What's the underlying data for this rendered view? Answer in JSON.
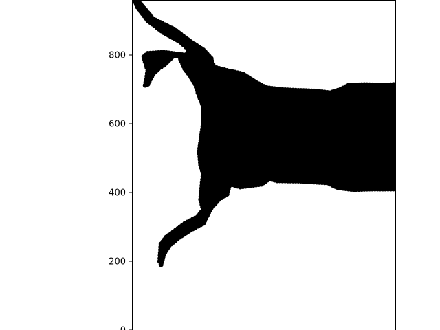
{
  "chart_data": {
    "type": "scatter",
    "title": "",
    "xlabel": "",
    "ylabel": "",
    "xlim": [
      0,
      1
    ],
    "ylim": [
      0,
      960
    ],
    "y_ticks": [
      0,
      200,
      400,
      600,
      800
    ],
    "y_tick_labels": [
      "0",
      "200",
      "400",
      "600",
      "800"
    ],
    "x_ticks": [],
    "grid": false,
    "legend": "none",
    "marker_color": "#000000",
    "axes_color": "#000000",
    "background": "#ffffff",
    "series": [
      {
        "shape": "silhouette of a leaping animal drawn as densely overlapping black dots",
        "outline": [
          [
            0.02,
            960
          ],
          [
            0.08,
            905
          ],
          [
            0.16,
            875
          ],
          [
            0.22,
            840
          ],
          [
            0.27,
            815
          ],
          [
            0.3,
            790
          ],
          [
            0.31,
            765
          ],
          [
            0.36,
            755
          ],
          [
            0.42,
            745
          ],
          [
            0.47,
            720
          ],
          [
            0.51,
            705
          ],
          [
            0.56,
            700
          ],
          [
            0.6,
            698
          ],
          [
            0.7,
            695
          ],
          [
            0.75,
            690
          ],
          [
            0.79,
            700
          ],
          [
            0.82,
            712
          ],
          [
            0.88,
            714
          ],
          [
            0.96,
            712
          ],
          [
            1.0,
            715
          ],
          [
            1.0,
            410
          ],
          [
            0.9,
            410
          ],
          [
            0.84,
            408
          ],
          [
            0.78,
            414
          ],
          [
            0.74,
            428
          ],
          [
            0.64,
            433
          ],
          [
            0.55,
            434
          ],
          [
            0.52,
            440
          ],
          [
            0.49,
            424
          ],
          [
            0.45,
            420
          ],
          [
            0.41,
            416
          ],
          [
            0.37,
            425
          ],
          [
            0.36,
            395
          ],
          [
            0.33,
            380
          ],
          [
            0.3,
            355
          ],
          [
            0.27,
            310
          ],
          [
            0.22,
            290
          ],
          [
            0.18,
            270
          ],
          [
            0.14,
            245
          ],
          [
            0.12,
            220
          ],
          [
            0.11,
            190
          ],
          [
            0.105,
            200
          ],
          [
            0.11,
            250
          ],
          [
            0.13,
            270
          ],
          [
            0.2,
            310
          ],
          [
            0.25,
            330
          ],
          [
            0.27,
            350
          ],
          [
            0.26,
            380
          ],
          [
            0.265,
            420
          ],
          [
            0.27,
            455
          ],
          [
            0.26,
            480
          ],
          [
            0.255,
            520
          ],
          [
            0.27,
            600
          ],
          [
            0.27,
            650
          ],
          [
            0.25,
            690
          ],
          [
            0.24,
            715
          ],
          [
            0.22,
            740
          ],
          [
            0.2,
            760
          ],
          [
            0.18,
            795
          ],
          [
            0.16,
            800
          ],
          [
            0.14,
            785
          ],
          [
            0.12,
            770
          ],
          [
            0.1,
            760
          ],
          [
            0.08,
            745
          ],
          [
            0.07,
            730
          ],
          [
            0.06,
            715
          ],
          [
            0.05,
            712
          ],
          [
            0.055,
            730
          ],
          [
            0.06,
            755
          ],
          [
            0.05,
            780
          ],
          [
            0.045,
            795
          ],
          [
            0.06,
            805
          ],
          [
            0.12,
            808
          ],
          [
            0.2,
            800
          ],
          [
            0.22,
            812
          ],
          [
            0.18,
            840
          ],
          [
            0.12,
            865
          ],
          [
            0.06,
            900
          ],
          [
            0.02,
            940
          ],
          [
            0.01,
            960
          ]
        ]
      }
    ]
  }
}
